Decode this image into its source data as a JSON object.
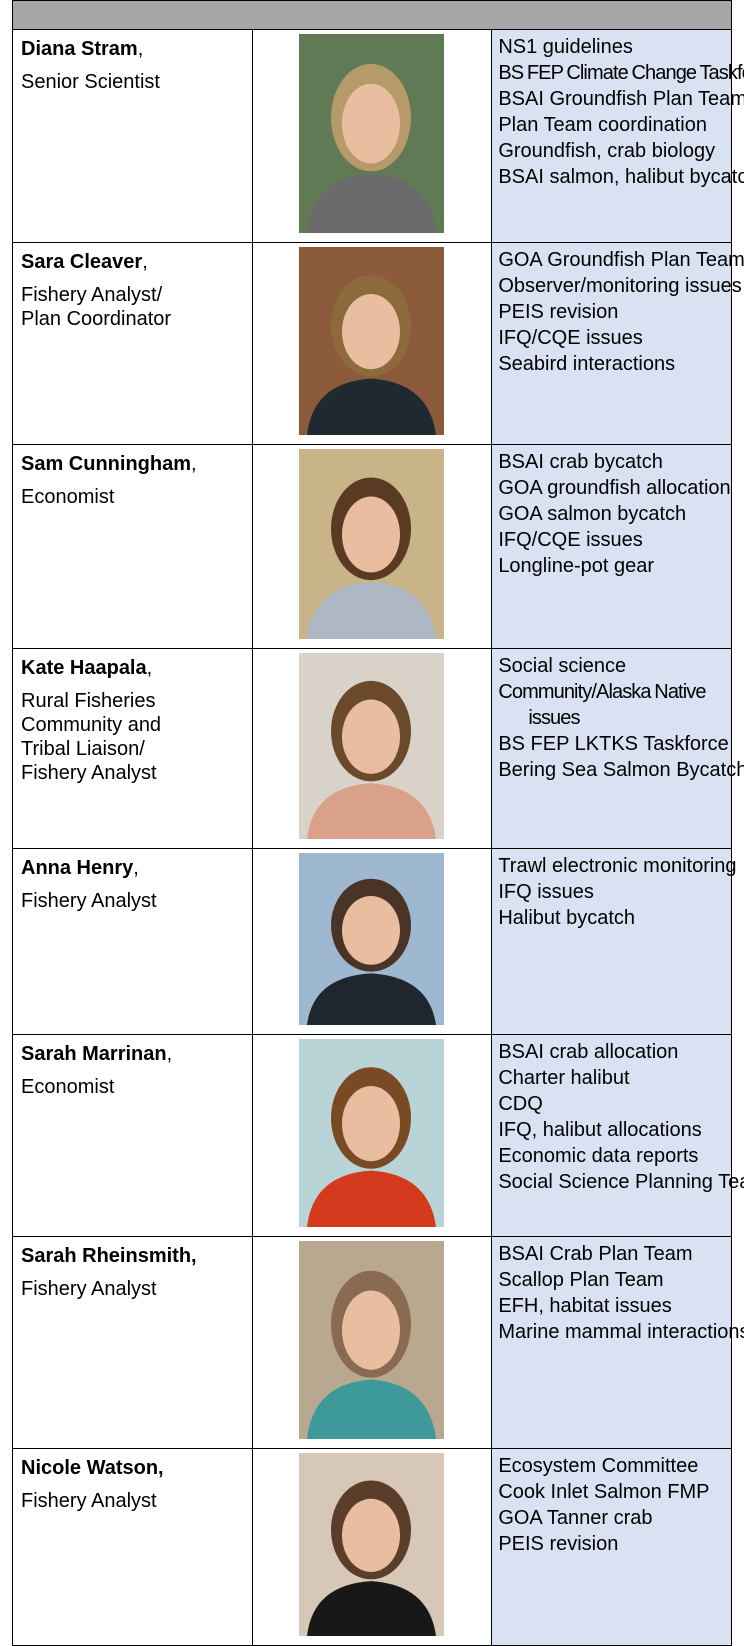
{
  "table": {
    "rows": [
      {
        "name": "Diana Stram",
        "punct": ",",
        "role": [
          "Senior Scientist"
        ],
        "duties": [
          "NS1 guidelines",
          "BS FEP Climate Change Taskforce",
          "BSAI Groundfish Plan Team",
          "Plan Team coordination",
          "Groundfish, crab biology",
          "BSAI salmon, halibut bycatch"
        ]
      },
      {
        "name": "Sara Cleaver",
        "punct": ",",
        "role": [
          "Fishery Analyst/",
          "Plan Coordinator"
        ],
        "duties": [
          "GOA Groundfish Plan Team",
          "Observer/monitoring issues",
          "PEIS revision",
          "IFQ/CQE issues",
          "Seabird interactions"
        ]
      },
      {
        "name": "Sam Cunningham",
        "punct": ",",
        "role": [
          "Economist"
        ],
        "duties": [
          "BSAI crab bycatch",
          "GOA groundfish allocation",
          "GOA salmon bycatch",
          "IFQ/CQE issues",
          "Longline-pot gear"
        ]
      },
      {
        "name": "Kate Haapala",
        "punct": ",",
        "role": [
          "Rural Fisheries",
          "Community and",
          "Tribal Liaison/",
          "Fishery Analyst"
        ],
        "duties": [
          "Social science",
          "Community/Alaska Native issues",
          "BS FEP LKTKS Taskforce",
          "Bering Sea Salmon Bycatch"
        ]
      },
      {
        "name": "Anna Henry",
        "punct": ",",
        "role": [
          "Fishery Analyst"
        ],
        "duties": [
          "Trawl electronic monitoring",
          "IFQ issues",
          "Halibut bycatch"
        ]
      },
      {
        "name": "Sarah Marrinan",
        "punct": ",",
        "role": [
          "Economist"
        ],
        "duties": [
          "BSAI crab allocation",
          "Charter halibut",
          "CDQ",
          "IFQ, halibut allocations",
          "Economic data reports",
          "Social Science Planning Team"
        ]
      },
      {
        "name": "Sarah Rheinsmith,",
        "role": [
          "Fishery Analyst"
        ],
        "duties": [
          "BSAI Crab Plan Team",
          "Scallop Plan Team",
          "EFH, habitat issues",
          "Marine mammal interactions"
        ]
      },
      {
        "name": "Nicole Watson,",
        "role": [
          "Fishery Analyst"
        ],
        "duties": [
          "Ecosystem Committee",
          "Cook Inlet Salmon FMP",
          "GOA Tanner crab",
          "PEIS revision"
        ]
      }
    ]
  }
}
